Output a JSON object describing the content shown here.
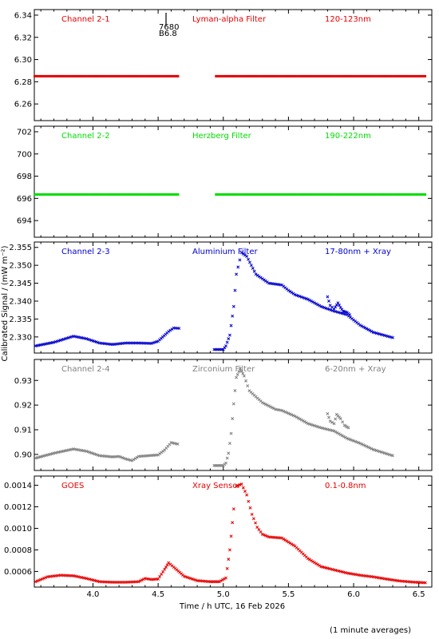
{
  "figure": {
    "xlabel": "Time / h UTC, 16 Feb 2026",
    "ylabel": "Calibrated Signal / (mW m⁻²)",
    "footnote": "(1 minute averages)",
    "marker_labels": [
      "7680",
      "B6.8"
    ]
  },
  "chart_data": [
    {
      "type": "scatter",
      "channel": "Channel 2-1",
      "filter": "Lyman-alpha Filter",
      "band": "120-123nm",
      "color": "#e60000",
      "x_range": [
        3.55,
        6.55
      ],
      "ylim": [
        6.245,
        6.345
      ],
      "yticks": [
        "6.26",
        "6.28",
        "6.30",
        "6.32",
        "6.34"
      ],
      "xticks": [
        "4.0",
        "4.5",
        "5.0",
        "5.5",
        "6.0",
        "6.5"
      ],
      "gap": [
        4.66,
        4.93
      ],
      "level_series": {
        "x_start": 3.55,
        "x_end": 6.55,
        "y": 6.285
      }
    },
    {
      "type": "scatter",
      "channel": "Channel 2-2",
      "filter": "Herzberg Filter",
      "band": "190-222nm",
      "color": "#00dd00",
      "x_range": [
        3.55,
        6.55
      ],
      "ylim": [
        692.5,
        702.5
      ],
      "yticks": [
        "694",
        "696",
        "698",
        "700",
        "702"
      ],
      "xticks": [
        "4.0",
        "4.5",
        "5.0",
        "5.5",
        "6.0",
        "6.5"
      ],
      "gap": [
        4.66,
        4.93
      ],
      "level_series": {
        "x_start": 3.55,
        "x_end": 6.55,
        "y": 696.35
      }
    },
    {
      "type": "scatter",
      "channel": "Channel 2-3",
      "filter": "Aluminium Filter",
      "band": "17-80nm + Xray",
      "color": "#0000cc",
      "ylim": [
        2.3255,
        2.3565
      ],
      "yticks": [
        "2.330",
        "2.335",
        "2.340",
        "2.345",
        "2.350",
        "2.355"
      ],
      "xticks": [
        "4.0",
        "4.5",
        "5.0",
        "5.5",
        "6.0",
        "6.5"
      ],
      "series": [
        {
          "x": [
            3.56,
            3.7,
            3.85,
            3.95,
            4.05,
            4.15,
            4.25,
            4.35,
            4.45,
            4.5,
            4.58,
            4.62,
            4.66
          ],
          "y": [
            2.3275,
            2.3285,
            2.3302,
            2.3295,
            2.3283,
            2.3279,
            2.3283,
            2.3283,
            2.3282,
            2.3288,
            2.3315,
            2.3325,
            2.3324
          ]
        },
        {
          "x": [
            4.93,
            5.0,
            5.02,
            5.05,
            5.08,
            5.1,
            5.14,
            5.18,
            5.25,
            5.35,
            5.45,
            5.5,
            5.55,
            5.65,
            5.75,
            5.85,
            5.95,
            6.05,
            6.15,
            6.3
          ],
          "y": [
            2.3265,
            2.3265,
            2.3275,
            2.3305,
            2.3385,
            2.3475,
            2.3535,
            2.3525,
            2.3475,
            2.345,
            2.3445,
            2.343,
            2.3418,
            2.3405,
            2.3385,
            2.3372,
            2.3362,
            2.3333,
            2.3313,
            2.3298
          ]
        },
        {
          "x": [
            5.8,
            5.82,
            5.85,
            5.88,
            5.9,
            5.92,
            5.95,
            5.97
          ],
          "y": [
            2.3412,
            2.3388,
            2.3378,
            2.3395,
            2.3382,
            2.3372,
            2.3368,
            2.3362
          ]
        }
      ]
    },
    {
      "type": "scatter",
      "channel": "Channel 2-4",
      "filter": "Zirconium Filter",
      "band": "6-20nm + Xray",
      "color": "#808080",
      "ylim": [
        0.8935,
        0.9385
      ],
      "yticks": [
        "0.90",
        "0.91",
        "0.92",
        "0.93"
      ],
      "xticks": [
        "4.0",
        "4.5",
        "5.0",
        "5.5",
        "6.0",
        "6.5"
      ],
      "series": [
        {
          "x": [
            3.56,
            3.7,
            3.85,
            3.95,
            4.05,
            4.15,
            4.2,
            4.25,
            4.3,
            4.35,
            4.45,
            4.5,
            4.55,
            4.6,
            4.65
          ],
          "y": [
            0.8985,
            0.9005,
            0.9022,
            0.9013,
            0.8995,
            0.899,
            0.8992,
            0.8982,
            0.8975,
            0.8992,
            0.8996,
            0.8998,
            0.9018,
            0.9048,
            0.9042
          ]
        },
        {
          "x": [
            4.93,
            5.0,
            5.02,
            5.04,
            5.06,
            5.08,
            5.1,
            5.13,
            5.16,
            5.2,
            5.3,
            5.4,
            5.45,
            5.55,
            5.65,
            5.75,
            5.85,
            5.95,
            6.05,
            6.15,
            6.3
          ],
          "y": [
            0.8955,
            0.8955,
            0.8965,
            0.9005,
            0.9085,
            0.9205,
            0.9312,
            0.9348,
            0.9318,
            0.9258,
            0.921,
            0.9183,
            0.9178,
            0.9155,
            0.9125,
            0.9108,
            0.9095,
            0.9065,
            0.9045,
            0.902,
            0.8995
          ]
        },
        {
          "x": [
            5.8,
            5.82,
            5.85,
            5.87,
            5.9,
            5.93,
            5.96
          ],
          "y": [
            0.9165,
            0.9135,
            0.9125,
            0.9162,
            0.9145,
            0.9118,
            0.9108
          ]
        }
      ]
    },
    {
      "type": "scatter",
      "channel": "GOES",
      "filter": "Xray Sensor",
      "band": "0.1-0.8nm",
      "color": "#e60000",
      "ylim": [
        0.000455,
        0.001485
      ],
      "yticks": [
        "0.0006",
        "0.0008",
        "0.0010",
        "0.0012",
        "0.0014"
      ],
      "xticks": [
        "4.0",
        "4.5",
        "5.0",
        "5.5",
        "6.0",
        "6.5"
      ],
      "series": [
        {
          "x": [
            3.56,
            3.65,
            3.75,
            3.85,
            3.95,
            4.05,
            4.15,
            4.25,
            4.35,
            4.4,
            4.45,
            4.5,
            4.55,
            4.58,
            4.62,
            4.7,
            4.8,
            4.9,
            4.97,
            5.02,
            5.05,
            5.08
          ],
          "y": [
            0.000505,
            0.00055,
            0.000565,
            0.00056,
            0.000535,
            0.000505,
            0.0005,
            0.0005,
            0.000505,
            0.000535,
            0.000525,
            0.00053,
            0.00062,
            0.00068,
            0.00064,
            0.000555,
            0.000515,
            0.000505,
            0.000505,
            0.00054,
            0.0008,
            0.00118
          ]
        },
        {
          "x": [
            5.1,
            5.14,
            5.18,
            5.22,
            5.26,
            5.3,
            5.35,
            5.45,
            5.55,
            5.65,
            5.75,
            5.85,
            5.95,
            6.05,
            6.15,
            6.25,
            6.35,
            6.45,
            6.55
          ],
          "y": [
            0.00139,
            0.00141,
            0.00131,
            0.00113,
            0.00101,
            0.000945,
            0.00092,
            0.00091,
            0.000835,
            0.00072,
            0.000645,
            0.000615,
            0.000585,
            0.000565,
            0.00055,
            0.00053,
            0.000512,
            0.000502,
            0.000495
          ]
        }
      ]
    }
  ]
}
